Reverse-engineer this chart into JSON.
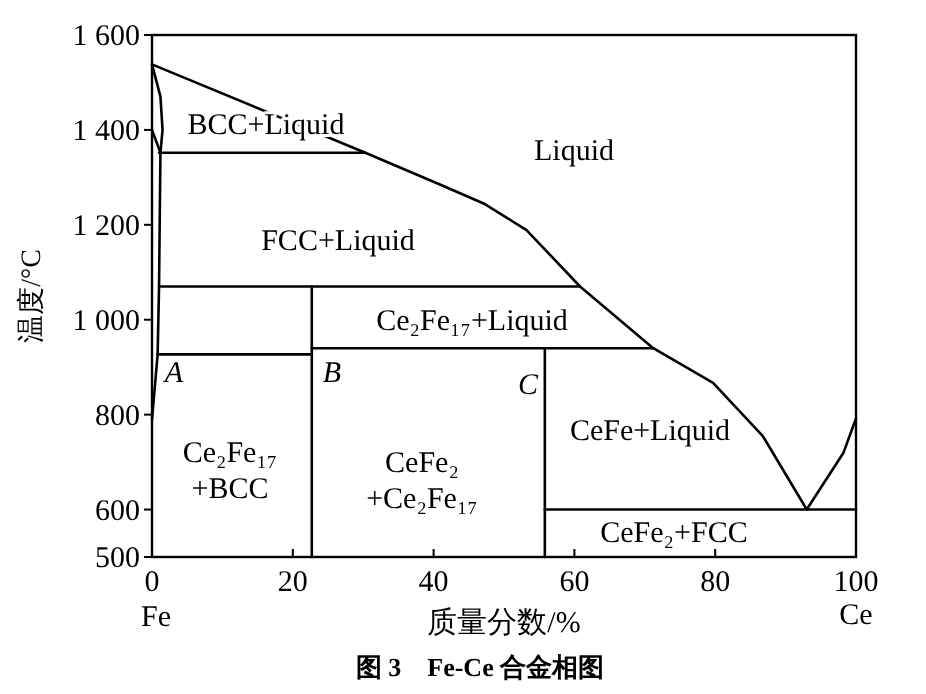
{
  "chart_data": {
    "type": "line",
    "title": "图 3　Fe-Ce 合金相图",
    "xlabel": "质量分数/%",
    "ylabel": "温度/°C",
    "xlim": [
      0,
      100
    ],
    "ylim": [
      500,
      1600
    ],
    "xticks": [
      0,
      20,
      40,
      60,
      80,
      100
    ],
    "yticks": [
      500,
      600,
      800,
      {
        "value": 1000,
        "label": "1 000"
      },
      {
        "value": 1200,
        "label": "1 200"
      },
      {
        "value": 1400,
        "label": "1 400"
      },
      {
        "value": 1600,
        "label": "1 600"
      }
    ],
    "grid": false,
    "marker": "none",
    "line_style": "solid",
    "series": [
      {
        "color": "#000000",
        "x": [
          0,
          30.3,
          40.9,
          47.1,
          53.2,
          60.8,
          71.2,
          79.7,
          86.8,
          93
        ],
        "values": [
          1538,
          1352,
          1285,
          1245,
          1189,
          1070,
          940,
          867,
          754,
          600
        ]
      },
      {
        "color": "#000000",
        "x": [
          93,
          98.2,
          100
        ],
        "values": [
          600,
          719,
          792
        ]
      },
      {
        "color": "#000000",
        "x": [
          0,
          1.2,
          1.5,
          1.2,
          1,
          0.8,
          0
        ],
        "values": [
          1538,
          1470,
          1400,
          1352,
          1070,
          927,
          790
        ]
      },
      {
        "color": "#000000",
        "x": [
          0,
          1.2
        ],
        "values": [
          1400,
          1352
        ]
      },
      {
        "color": "#000000",
        "x": [
          1,
          30.3
        ],
        "values": [
          1352,
          1352
        ]
      },
      {
        "color": "#000000",
        "x": [
          1,
          60.8
        ],
        "values": [
          1070,
          1070
        ]
      },
      {
        "color": "#000000",
        "x": [
          0.8,
          22.7
        ],
        "values": [
          927,
          927
        ]
      },
      {
        "color": "#000000",
        "x": [
          22.7,
          71.2
        ],
        "values": [
          940,
          940
        ]
      },
      {
        "color": "#000000",
        "x": [
          55.8,
          100
        ],
        "values": [
          600,
          600
        ]
      },
      {
        "color": "#000000",
        "x": [
          22.7,
          22.7
        ],
        "values": [
          1070,
          500
        ]
      },
      {
        "color": "#000000",
        "x": [
          55.8,
          55.8
        ],
        "values": [
          940,
          500
        ]
      }
    ],
    "annotations": [
      "BCC+Liquid",
      "Liquid",
      "FCC+Liquid",
      "Ce₂Fe₁₇+Liquid",
      "A",
      "B",
      "C",
      "Ce₂Fe₁₇\n+BCC",
      "CeFe₂\n+Ce₂Fe₁₇",
      "CeFe+Liquid",
      "CeFe₂+FCC",
      "Fe",
      "Ce"
    ]
  }
}
